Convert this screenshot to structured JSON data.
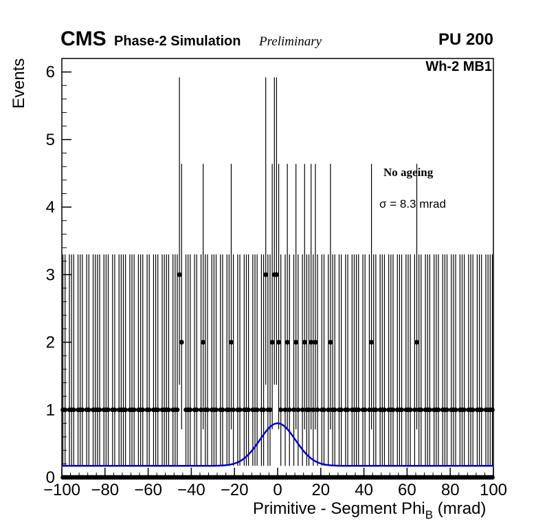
{
  "header": {
    "experiment": "CMS",
    "phase_label": "Phase-2 Simulation",
    "preliminary": "Preliminary",
    "pileup": "PU 200"
  },
  "annotations": {
    "chamber": "Wh-2 MB1",
    "ageing": "No ageing",
    "sigma": "σ = 8.3 mrad"
  },
  "axes": {
    "y_title": "Events",
    "x_title_main": "Primitive - Segment Phi",
    "x_title_sub": "B",
    "x_title_suffix": " (mrad)"
  },
  "chart_data": {
    "type": "scatter",
    "subtype": "histogram-with-poisson-error-bars",
    "title": "CMS Phase-2 Simulation Preliminary, PU 200, Wh-2 MB1",
    "xlabel": "Primitive - Segment Phi_B (mrad)",
    "ylabel": "Events",
    "xlim": [
      -100,
      100
    ],
    "ylim": [
      0,
      6.2
    ],
    "x_ticks": [
      -100,
      -80,
      -60,
      -40,
      -20,
      0,
      20,
      40,
      60,
      80,
      100
    ],
    "x_minor_tick_step": 4,
    "y_ticks": [
      0,
      1,
      2,
      3,
      4,
      5,
      6
    ],
    "y_minor_tick_step": 0.2,
    "bin_width": 1,
    "marker": {
      "shape": "circle",
      "color": "#000000",
      "radius_px": 3.4
    },
    "poisson_errors": {
      "1": [
        0.83,
        2.3
      ],
      "2": [
        1.29,
        2.64
      ],
      "3": [
        1.63,
        2.92
      ]
    },
    "one_event_bins": {
      "start": -99.5,
      "end": 99.5,
      "step": 1,
      "empty_bins": [
        -97.5,
        -93.5,
        -89.5,
        -86.5,
        -81.5,
        -77.5,
        -74.5,
        -69.5,
        -65.5,
        -61.5,
        -58.5,
        -54.5,
        -49.5,
        -43.5,
        -39.5,
        -36.5,
        -31.5,
        -27.5,
        -24.5,
        -19.5,
        -16.5,
        -12.5,
        -8.5,
        2.5,
        6.5,
        10.5,
        19.5,
        22.5,
        27.5,
        30.5,
        33.5,
        38.5,
        41.5,
        46.5,
        50.5,
        54.5,
        58.5,
        62.5,
        67.5,
        71.5,
        75.5,
        79.5,
        83.5,
        87.5,
        91.5,
        95.5
      ]
    },
    "two_event_bins": [
      -44.5,
      -34.5,
      -21.5,
      -2.5,
      0.5,
      4.5,
      8.5,
      12.5,
      15.5,
      17.5,
      24.5,
      43.5,
      64.5
    ],
    "three_event_bins": [
      -45.5,
      -5.5,
      -1.5,
      -0.5
    ],
    "zero_marker_band": {
      "start": -99.5,
      "end": 99.5,
      "step": 1,
      "y": 0
    },
    "fit": {
      "model": "gaussian + constant",
      "mean": 0,
      "sigma": 8.3,
      "amplitude": 0.63,
      "constant": 0.17,
      "color": "#0000cc"
    }
  }
}
